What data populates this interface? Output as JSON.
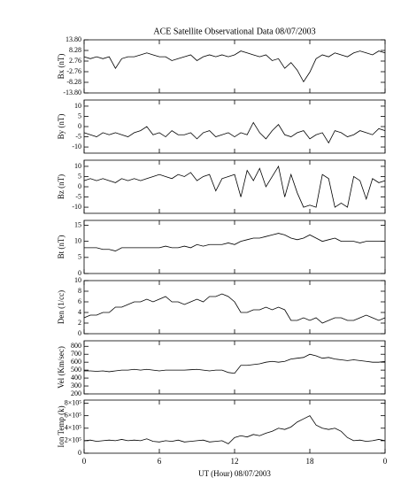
{
  "chart_data": [
    {
      "type": "line",
      "title": "ACE Satellite Observational Data   08/07/2003",
      "ylabel": "Bx (nT)",
      "color": "#000000",
      "x": [
        0,
        0.5,
        1,
        1.5,
        2,
        2.5,
        3,
        3.5,
        4,
        4.5,
        5,
        5.5,
        6,
        6.5,
        7,
        7.5,
        8,
        8.5,
        9,
        9.5,
        10,
        10.5,
        11,
        11.5,
        12,
        12.5,
        13,
        13.5,
        14,
        14.5,
        15,
        15.5,
        16,
        16.5,
        17,
        17.5,
        18,
        18.5,
        19,
        19.5,
        20,
        20.5,
        21,
        21.5,
        22,
        22.5,
        23,
        23.5,
        24
      ],
      "values": [
        5,
        4,
        5,
        4,
        5,
        -1,
        4,
        5,
        5,
        6,
        7,
        6,
        5,
        5,
        3,
        4,
        5,
        6,
        3,
        5,
        6,
        5,
        6,
        5,
        6,
        8,
        7,
        6,
        5,
        6,
        3,
        4,
        -1,
        2,
        -2,
        -8,
        -3,
        4,
        6,
        5,
        7,
        6,
        5,
        7,
        8,
        7,
        6,
        8,
        7
      ],
      "xlim": [
        0,
        24
      ],
      "ylim": [
        -13.8,
        13.8
      ],
      "yticks": [
        {
          "value": 13.8,
          "label": "13.80"
        },
        8.28,
        2.76,
        -2.76,
        -8.28,
        {
          "value": -13.8,
          "label": "-13.80"
        }
      ]
    },
    {
      "type": "line",
      "ylabel": "By (nT)",
      "color": "#000000",
      "x": [
        0,
        0.5,
        1,
        1.5,
        2,
        2.5,
        3,
        3.5,
        4,
        4.5,
        5,
        5.5,
        6,
        6.5,
        7,
        7.5,
        8,
        8.5,
        9,
        9.5,
        10,
        10.5,
        11,
        11.5,
        12,
        12.5,
        13,
        13.5,
        14,
        14.5,
        15,
        15.5,
        16,
        16.5,
        17,
        17.5,
        18,
        18.5,
        19,
        19.5,
        20,
        20.5,
        21,
        21.5,
        22,
        22.5,
        23,
        23.5,
        24
      ],
      "values": [
        -3,
        -4,
        -5,
        -3,
        -4,
        -3,
        -4,
        -5,
        -3,
        -2,
        0,
        -4,
        -3,
        -5,
        -2,
        -4,
        -4,
        -3,
        -6,
        -3,
        -2,
        -5,
        -4,
        -3,
        -5,
        -3,
        -4,
        2,
        -3,
        -6,
        -2,
        1,
        -4,
        -5,
        -3,
        -2,
        -6,
        -4,
        -3,
        -8,
        -2,
        -3,
        -5,
        -4,
        -2,
        -3,
        -4,
        -1,
        -2
      ],
      "xlim": [
        0,
        24
      ],
      "ylim": [
        -13,
        13
      ],
      "yticks": [
        10,
        5,
        0,
        -5,
        -10
      ]
    },
    {
      "type": "line",
      "ylabel": "Bz (nT)",
      "color": "#000000",
      "x": [
        0,
        0.5,
        1,
        1.5,
        2,
        2.5,
        3,
        3.5,
        4,
        4.5,
        5,
        5.5,
        6,
        6.5,
        7,
        7.5,
        8,
        8.5,
        9,
        9.5,
        10,
        10.5,
        11,
        11.5,
        12,
        12.5,
        13,
        13.5,
        14,
        14.5,
        15,
        15.5,
        16,
        16.5,
        17,
        17.5,
        18,
        18.5,
        19,
        19.5,
        20,
        20.5,
        21,
        21.5,
        22,
        22.5,
        23,
        23.5,
        24
      ],
      "values": [
        3,
        4,
        3,
        4,
        3,
        2,
        4,
        3,
        4,
        3,
        4,
        5,
        6,
        5,
        4,
        6,
        5,
        7,
        3,
        5,
        6,
        -2,
        4,
        5,
        6,
        -5,
        8,
        3,
        9,
        0,
        5,
        10,
        -5,
        6,
        -3,
        -10,
        -9,
        -10,
        6,
        4,
        -10,
        -8,
        -10,
        5,
        3,
        -6,
        4,
        2,
        3
      ],
      "xlim": [
        0,
        24
      ],
      "ylim": [
        -13,
        13
      ],
      "yticks": [
        10,
        5,
        0,
        -5,
        -10
      ]
    },
    {
      "type": "line",
      "ylabel": "Bt (nT)",
      "color": "#000000",
      "x": [
        0,
        0.5,
        1,
        1.5,
        2,
        2.5,
        3,
        3.5,
        4,
        4.5,
        5,
        5.5,
        6,
        6.5,
        7,
        7.5,
        8,
        8.5,
        9,
        9.5,
        10,
        10.5,
        11,
        11.5,
        12,
        12.5,
        13,
        13.5,
        14,
        14.5,
        15,
        15.5,
        16,
        16.5,
        17,
        17.5,
        18,
        18.5,
        19,
        19.5,
        20,
        20.5,
        21,
        21.5,
        22,
        22.5,
        23,
        23.5,
        24
      ],
      "values": [
        8,
        8,
        8,
        7.5,
        7.5,
        7,
        8,
        8,
        8,
        8,
        8,
        8,
        8,
        8.5,
        8,
        8,
        8.5,
        8,
        9,
        8.5,
        9,
        9,
        9,
        9.5,
        9,
        10,
        10.5,
        11,
        11,
        11.5,
        12,
        12.5,
        12,
        11,
        10.5,
        11,
        12,
        11,
        10,
        10.5,
        11,
        10,
        10,
        10,
        9.5,
        10,
        10,
        10,
        10
      ],
      "xlim": [
        0,
        24
      ],
      "ylim": [
        0,
        16.5
      ],
      "yticks": [
        0,
        5,
        10,
        15
      ]
    },
    {
      "type": "line",
      "ylabel": "Den (1/cc)",
      "color": "#000000",
      "x": [
        0,
        0.5,
        1,
        1.5,
        2,
        2.5,
        3,
        3.5,
        4,
        4.5,
        5,
        5.5,
        6,
        6.5,
        7,
        7.5,
        8,
        8.5,
        9,
        9.5,
        10,
        10.5,
        11,
        11.5,
        12,
        12.5,
        13,
        13.5,
        14,
        14.5,
        15,
        15.5,
        16,
        16.5,
        17,
        17.5,
        18,
        18.5,
        19,
        19.5,
        20,
        20.5,
        21,
        21.5,
        22,
        22.5,
        23,
        23.5,
        24
      ],
      "values": [
        3,
        3.5,
        3.5,
        4,
        4,
        5,
        5,
        5.5,
        6,
        6,
        6.5,
        6,
        6.5,
        7,
        6,
        6,
        5.5,
        6,
        6.5,
        6,
        7,
        7,
        7.5,
        7,
        6,
        4,
        4,
        4.5,
        4.5,
        5,
        4.5,
        5,
        4.5,
        2.5,
        2.5,
        3,
        2.5,
        3,
        2,
        2.5,
        3,
        3,
        2.5,
        2.5,
        3,
        3.5,
        3,
        2.5,
        3
      ],
      "xlim": [
        0,
        24
      ],
      "ylim": [
        0,
        10
      ],
      "yticks": [
        0,
        2,
        4,
        6,
        8,
        10
      ]
    },
    {
      "type": "line",
      "ylabel": "Vel (Km/sec)",
      "color": "#000000",
      "x": [
        0,
        0.5,
        1,
        1.5,
        2,
        2.5,
        3,
        3.5,
        4,
        4.5,
        5,
        5.5,
        6,
        6.5,
        7,
        7.5,
        8,
        8.5,
        9,
        9.5,
        10,
        10.5,
        11,
        11.5,
        12,
        12.5,
        13,
        13.5,
        14,
        14.5,
        15,
        15.5,
        16,
        16.5,
        17,
        17.5,
        18,
        18.5,
        19,
        19.5,
        20,
        20.5,
        21,
        21.5,
        22,
        22.5,
        23,
        23.5,
        24
      ],
      "values": [
        490,
        490,
        485,
        490,
        480,
        490,
        500,
        500,
        510,
        500,
        510,
        500,
        490,
        500,
        500,
        500,
        500,
        505,
        510,
        500,
        490,
        500,
        500,
        470,
        460,
        560,
        560,
        570,
        580,
        600,
        610,
        600,
        610,
        640,
        650,
        660,
        700,
        680,
        650,
        660,
        640,
        630,
        620,
        630,
        620,
        610,
        600,
        600,
        610
      ],
      "xlim": [
        0,
        24
      ],
      "ylim": [
        200,
        870
      ],
      "yticks": [
        200,
        300,
        400,
        500,
        600,
        700,
        800
      ]
    },
    {
      "type": "line",
      "ylabel": "Ion Temp (k)",
      "xlabel": "UT (Hour)   08/07/2003",
      "color": "#000000",
      "x": [
        0,
        0.5,
        1,
        1.5,
        2,
        2.5,
        3,
        3.5,
        4,
        4.5,
        5,
        5.5,
        6,
        6.5,
        7,
        7.5,
        8,
        8.5,
        9,
        9.5,
        10,
        10.5,
        11,
        11.5,
        12,
        12.5,
        13,
        13.5,
        14,
        14.5,
        15,
        15.5,
        16,
        16.5,
        17,
        17.5,
        18,
        18.5,
        19,
        19.5,
        20,
        20.5,
        21,
        21.5,
        22,
        22.5,
        23,
        23.5,
        24
      ],
      "values": [
        200000,
        210000,
        190000,
        200000,
        210000,
        200000,
        220000,
        200000,
        210000,
        200000,
        230000,
        190000,
        180000,
        200000,
        190000,
        210000,
        180000,
        190000,
        200000,
        210000,
        180000,
        190000,
        200000,
        150000,
        250000,
        280000,
        260000,
        300000,
        280000,
        320000,
        350000,
        400000,
        380000,
        420000,
        500000,
        550000,
        600000,
        450000,
        400000,
        380000,
        400000,
        350000,
        250000,
        200000,
        210000,
        190000,
        200000,
        220000,
        200000
      ],
      "xlim": [
        0,
        24
      ],
      "ylim": [
        0,
        850000
      ],
      "yticks": [
        0,
        {
          "value": 200000,
          "label": "2×10⁵"
        },
        {
          "value": 400000,
          "label": "4×10⁵"
        },
        {
          "value": 600000,
          "label": "6×10⁵"
        },
        {
          "value": 800000,
          "label": "8×10⁵"
        }
      ],
      "xticks": [
        {
          "value": 0,
          "label": "0"
        },
        6,
        12,
        18,
        {
          "value": 24,
          "label": "0"
        }
      ]
    }
  ]
}
